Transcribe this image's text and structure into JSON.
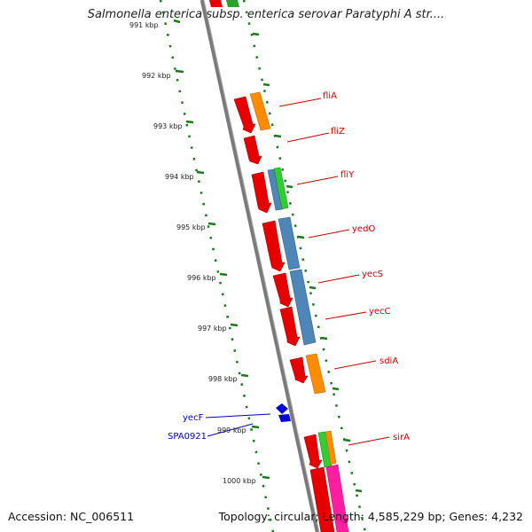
{
  "title": "Salmonella enterica subsp. enterica serovar Paratyphi A str....",
  "accession": "Accession: NC_006511",
  "stats": "Topology: circular; Length: 4,585,229 bp; Genes: 4,232",
  "kbp_ticks": [
    "991 kbp",
    "992 kbp",
    "993 kbp",
    "994 kbp",
    "995 kbp",
    "996 kbp",
    "997 kbp",
    "998 kbp",
    "999 kbp",
    "1000 kbp"
  ],
  "colors": {
    "forward_cds": "#e60000",
    "orange": "#ff8c00",
    "green": "#33cc33",
    "steelblue": "#4f86b8",
    "magenta": "#ff1ea0",
    "reverse_cds": "#0000dd",
    "label_red": "#cc0000",
    "label_blue": "#0000bb",
    "tick_green": "#1a7a1a",
    "backbone": "#808080"
  },
  "gene_labels": [
    {
      "text": "fliA",
      "color": "red"
    },
    {
      "text": "fliZ",
      "color": "red"
    },
    {
      "text": "fliY",
      "color": "red"
    },
    {
      "text": "yedO",
      "color": "red"
    },
    {
      "text": "yecS",
      "color": "red"
    },
    {
      "text": "yecC",
      "color": "red"
    },
    {
      "text": "sdiA",
      "color": "red"
    },
    {
      "text": "sirA",
      "color": "red"
    },
    {
      "text": "yecF",
      "color": "blue"
    },
    {
      "text": "SPA0921",
      "color": "blue"
    }
  ]
}
